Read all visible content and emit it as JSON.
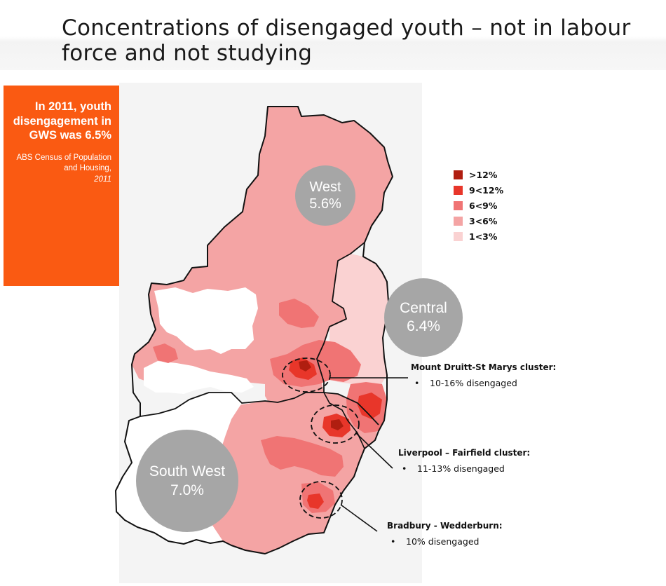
{
  "slide": {
    "title": "Concentrations of disengaged youth – not in labour force and not studying"
  },
  "callout": {
    "headline": "In 2011, youth disengagement in GWS was 6.5%",
    "source_line": "ABS Census of Population and Housing,",
    "source_year": "2011"
  },
  "legend": {
    "items": [
      {
        "label": ">12%",
        "color": "#b01e10"
      },
      {
        "label": "9<12%",
        "color": "#e8362a"
      },
      {
        "label": "6<9%",
        "color": "#f07474"
      },
      {
        "label": "3<6%",
        "color": "#f4a4a4"
      },
      {
        "label": "1<3%",
        "color": "#fad2d2"
      }
    ]
  },
  "regions": [
    {
      "name": "West",
      "value": "5.6%"
    },
    {
      "name": "Central",
      "value": "6.4%"
    },
    {
      "name": "South West",
      "value": "7.0%"
    }
  ],
  "clusters": [
    {
      "title": "Mount Druitt-St Marys cluster:",
      "bullet": "•",
      "detail": "10-16% disengaged"
    },
    {
      "title": "Liverpool – Fairfield  cluster:",
      "bullet": "•",
      "detail": "11-13% disengaged"
    },
    {
      "title": "Bradbury - Wedderburn:",
      "bullet": "•",
      "detail": "10% disengaged"
    }
  ],
  "colors": {
    "callout_bg": "#fa5a12",
    "bubble_gray": "#a6a6a6",
    "boundary": "#111111"
  }
}
